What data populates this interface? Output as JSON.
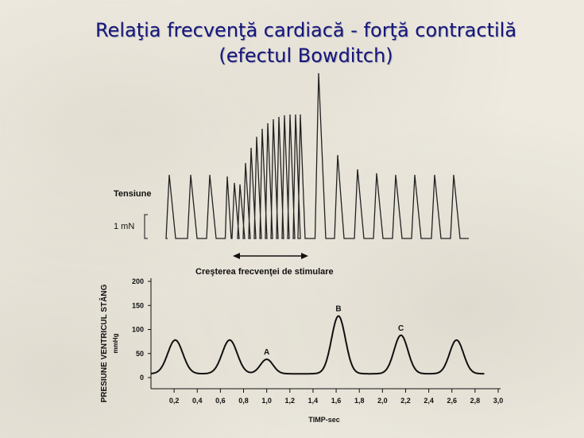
{
  "slide": {
    "title_line1": "Relaţia frecvenţă cardiacă - forţă contractilă",
    "title_line2": "(efectul Bowditch)"
  },
  "top_panel": {
    "label_tension": "Tensiune",
    "scale_label": "1 mN",
    "arrow_label": "Creşterea frecvenţei de stimulare"
  },
  "chart_data": {
    "type": "line",
    "ylabel": "PRESIUNE VENTRICUL STÂNG",
    "ylabel_unit": "mmHg",
    "xlabel": "TIMP-sec",
    "xlim": [
      0.0,
      3.0
    ],
    "ylim": [
      0,
      200
    ],
    "x_ticks": [
      "0,2",
      "0,4",
      "0,6",
      "0,8",
      "1,0",
      "1,2",
      "1,4",
      "1,6",
      "1,8",
      "2,0",
      "2,2",
      "2,4",
      "2,6",
      "2,8",
      "3,0"
    ],
    "y_ticks": [
      "0",
      "50",
      "100",
      "150",
      "200"
    ],
    "baseline": 8,
    "beats": [
      {
        "peak_time": 0.21,
        "peak_pressure": 78,
        "label": ""
      },
      {
        "peak_time": 0.68,
        "peak_pressure": 78,
        "label": ""
      },
      {
        "peak_time": 1.0,
        "peak_pressure": 38,
        "label": "A"
      },
      {
        "peak_time": 1.62,
        "peak_pressure": 128,
        "label": "B"
      },
      {
        "peak_time": 2.16,
        "peak_pressure": 88,
        "label": "C"
      },
      {
        "peak_time": 2.64,
        "peak_pressure": 78,
        "label": ""
      }
    ]
  }
}
